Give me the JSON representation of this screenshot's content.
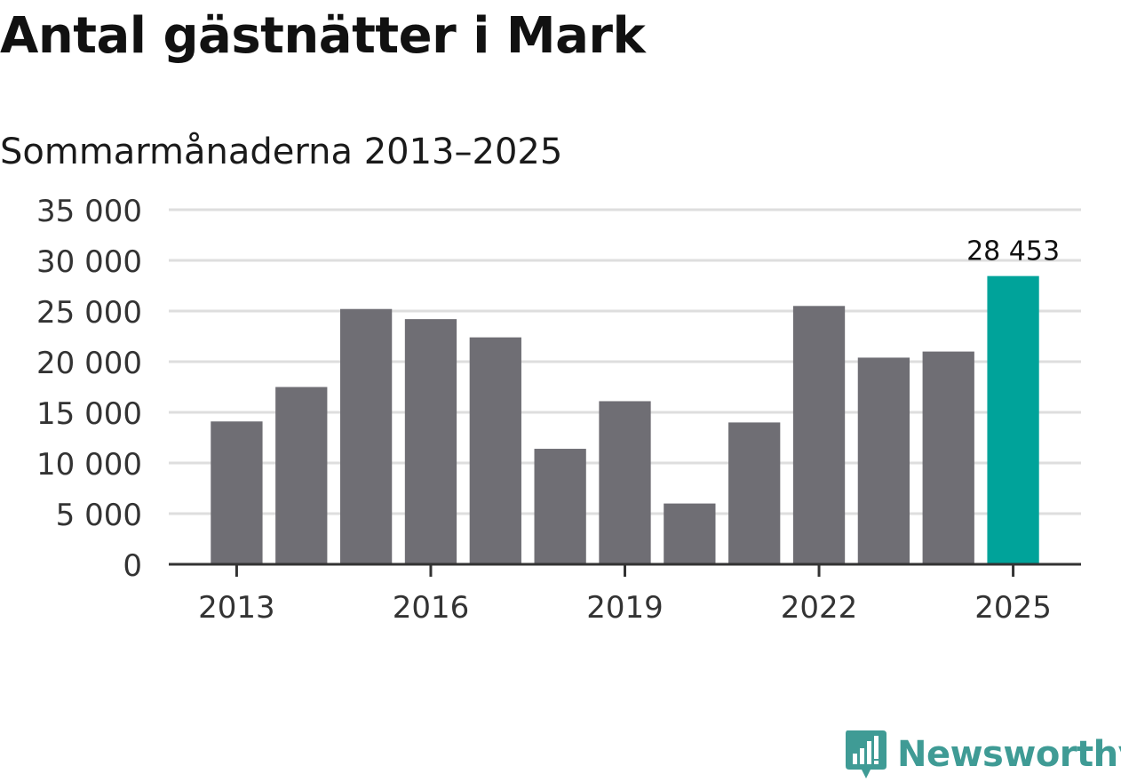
{
  "title": "Antal gästnätter i Mark",
  "subtitle": "Sommarmånaderna 2013–2025",
  "brand": "Newsworthy",
  "colors": {
    "bar": "#6f6e74",
    "highlight": "#00a39a",
    "grid": "#dedede",
    "axis": "#333333",
    "brand": "#3f9b95"
  },
  "chart_data": {
    "type": "bar",
    "categories": [
      "2013",
      "2014",
      "2015",
      "2016",
      "2017",
      "2018",
      "2019",
      "2020",
      "2021",
      "2022",
      "2023",
      "2024",
      "2025"
    ],
    "values": [
      14100,
      17500,
      25200,
      24200,
      22400,
      11400,
      16100,
      6000,
      14000,
      25500,
      20400,
      21000,
      28453
    ],
    "x_tick_labels": [
      "2013",
      "2016",
      "2019",
      "2022",
      "2025"
    ],
    "y_ticks": [
      0,
      5000,
      10000,
      15000,
      20000,
      25000,
      30000,
      35000
    ],
    "y_tick_labels": [
      "0",
      "5 000",
      "10 000",
      "15 000",
      "20 000",
      "25 000",
      "30 000",
      "35 000"
    ],
    "ylim": [
      0,
      35000
    ],
    "highlight_category": "2025",
    "data_labels": [
      {
        "category": "2025",
        "text": "28 453"
      }
    ],
    "xlabel": "",
    "ylabel": "",
    "grid": true,
    "legend": "none"
  }
}
